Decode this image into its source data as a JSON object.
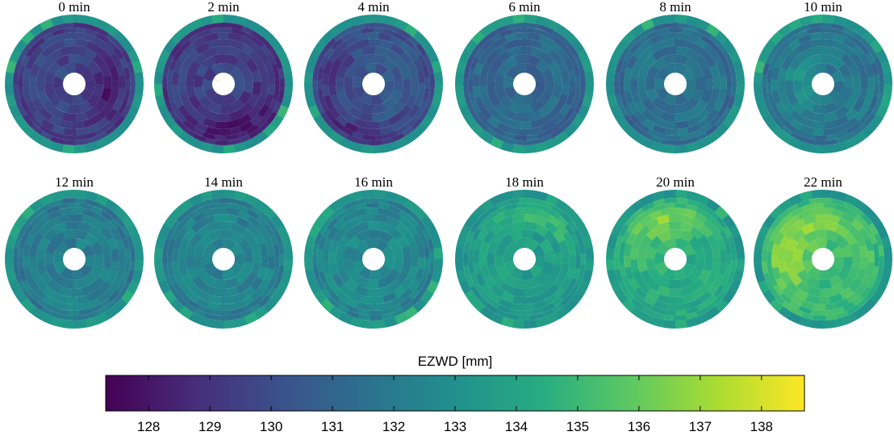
{
  "chart_data": {
    "type": "heatmap",
    "subtype": "polar-disc-small-multiples",
    "panels": [
      {
        "title": "0 min",
        "mean": 129.7,
        "hotspot": "right-center-dark",
        "seed": 11
      },
      {
        "title": "2 min",
        "mean": 129.5,
        "hotspot": "bottom-right-dark",
        "seed": 23
      },
      {
        "title": "4 min",
        "mean": 130.4,
        "hotspot": "bottom-left-dark",
        "seed": 37
      },
      {
        "title": "6 min",
        "mean": 131.2,
        "hotspot": "none",
        "seed": 41
      },
      {
        "title": "8 min",
        "mean": 131.6,
        "hotspot": "none",
        "seed": 53
      },
      {
        "title": "10 min",
        "mean": 131.9,
        "hotspot": "center-light",
        "seed": 67
      },
      {
        "title": "12 min",
        "mean": 132.2,
        "hotspot": "none",
        "seed": 71
      },
      {
        "title": "14 min",
        "mean": 132.4,
        "hotspot": "none",
        "seed": 83
      },
      {
        "title": "16 min",
        "mean": 132.6,
        "hotspot": "none",
        "seed": 97
      },
      {
        "title": "18 min",
        "mean": 133.6,
        "hotspot": "top-light",
        "seed": 101
      },
      {
        "title": "20 min",
        "mean": 134.4,
        "hotspot": "top-left-light",
        "seed": 113
      },
      {
        "title": "22 min",
        "mean": 135.1,
        "hotspot": "left-light",
        "seed": 127
      }
    ],
    "outer_ring_value": 133.3,
    "colorbar": {
      "label": "EZWD [mm]",
      "range": [
        127.3,
        138.7
      ],
      "ticks": [
        128,
        129,
        130,
        131,
        132,
        133,
        134,
        135,
        136,
        137,
        138
      ],
      "colormap": "viridis"
    }
  }
}
